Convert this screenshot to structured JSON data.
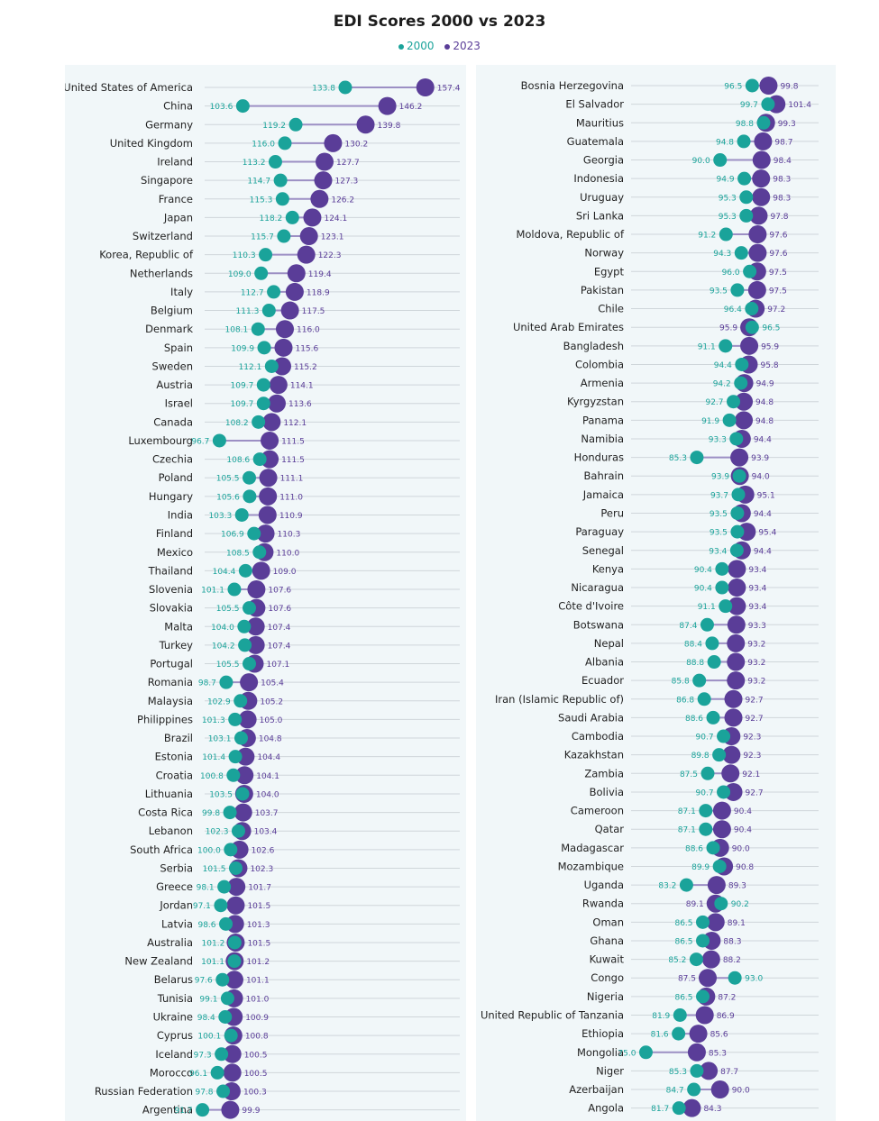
{
  "chart_data": {
    "type": "dumbbell",
    "title": "EDI Scores 2000 vs 2023",
    "legend": [
      {
        "label": "2000",
        "color": "#1aa39a"
      },
      {
        "label": "2023",
        "color": "#5a3d98"
      }
    ],
    "series_names": [
      "2000",
      "2023"
    ],
    "panels": [
      {
        "xlim": [
          95,
          158
        ],
        "rows": [
          {
            "country": "United States of America",
            "v2000": 133.8,
            "v2023": 157.4
          },
          {
            "country": "China",
            "v2000": 103.6,
            "v2023": 146.2
          },
          {
            "country": "Germany",
            "v2000": 119.2,
            "v2023": 139.8
          },
          {
            "country": "United Kingdom",
            "v2000": 116.0,
            "v2023": 130.2
          },
          {
            "country": "Ireland",
            "v2000": 113.2,
            "v2023": 127.7
          },
          {
            "country": "Singapore",
            "v2000": 114.7,
            "v2023": 127.3
          },
          {
            "country": "France",
            "v2000": 115.3,
            "v2023": 126.2
          },
          {
            "country": "Japan",
            "v2000": 118.2,
            "v2023": 124.1
          },
          {
            "country": "Switzerland",
            "v2000": 115.7,
            "v2023": 123.1
          },
          {
            "country": "Korea, Republic of",
            "v2000": 110.3,
            "v2023": 122.3
          },
          {
            "country": "Netherlands",
            "v2000": 109.0,
            "v2023": 119.4
          },
          {
            "country": "Italy",
            "v2000": 112.7,
            "v2023": 118.9
          },
          {
            "country": "Belgium",
            "v2000": 111.3,
            "v2023": 117.5
          },
          {
            "country": "Denmark",
            "v2000": 108.1,
            "v2023": 116.0
          },
          {
            "country": "Spain",
            "v2000": 109.9,
            "v2023": 115.6
          },
          {
            "country": "Sweden",
            "v2000": 112.1,
            "v2023": 115.2
          },
          {
            "country": "Austria",
            "v2000": 109.7,
            "v2023": 114.1
          },
          {
            "country": "Israel",
            "v2000": 109.7,
            "v2023": 113.6
          },
          {
            "country": "Canada",
            "v2000": 108.2,
            "v2023": 112.1
          },
          {
            "country": "Luxembourg",
            "v2000": 96.7,
            "v2023": 111.5
          },
          {
            "country": "Czechia",
            "v2000": 108.6,
            "v2023": 111.5
          },
          {
            "country": "Poland",
            "v2000": 105.5,
            "v2023": 111.1
          },
          {
            "country": "Hungary",
            "v2000": 105.6,
            "v2023": 111.0
          },
          {
            "country": "India",
            "v2000": 103.3,
            "v2023": 110.9
          },
          {
            "country": "Finland",
            "v2000": 106.9,
            "v2023": 110.3
          },
          {
            "country": "Mexico",
            "v2000": 108.5,
            "v2023": 110.0
          },
          {
            "country": "Thailand",
            "v2000": 104.4,
            "v2023": 109.0
          },
          {
            "country": "Slovenia",
            "v2000": 101.1,
            "v2023": 107.6
          },
          {
            "country": "Slovakia",
            "v2000": 105.5,
            "v2023": 107.6
          },
          {
            "country": "Malta",
            "v2000": 104.0,
            "v2023": 107.4
          },
          {
            "country": "Turkey",
            "v2000": 104.2,
            "v2023": 107.4
          },
          {
            "country": "Portugal",
            "v2000": 105.5,
            "v2023": 107.1
          },
          {
            "country": "Romania",
            "v2000": 98.7,
            "v2023": 105.4
          },
          {
            "country": "Malaysia",
            "v2000": 102.9,
            "v2023": 105.2
          },
          {
            "country": "Philippines",
            "v2000": 101.3,
            "v2023": 105.0
          },
          {
            "country": "Brazil",
            "v2000": 103.1,
            "v2023": 104.8
          },
          {
            "country": "Estonia",
            "v2000": 101.4,
            "v2023": 104.4
          },
          {
            "country": "Croatia",
            "v2000": 100.8,
            "v2023": 104.1
          },
          {
            "country": "Lithuania",
            "v2000": 103.5,
            "v2023": 104.0
          },
          {
            "country": "Costa Rica",
            "v2000": 99.8,
            "v2023": 103.7
          },
          {
            "country": "Lebanon",
            "v2000": 102.3,
            "v2023": 103.4
          },
          {
            "country": "South Africa",
            "v2000": 100.0,
            "v2023": 102.6
          },
          {
            "country": "Serbia",
            "v2000": 101.5,
            "v2023": 102.3
          },
          {
            "country": "Greece",
            "v2000": 98.1,
            "v2023": 101.7
          },
          {
            "country": "Jordan",
            "v2000": 97.1,
            "v2023": 101.5
          },
          {
            "country": "Latvia",
            "v2000": 98.6,
            "v2023": 101.3
          },
          {
            "country": "Australia",
            "v2000": 101.2,
            "v2023": 101.5
          },
          {
            "country": "New Zealand",
            "v2000": 101.1,
            "v2023": 101.2
          },
          {
            "country": "Belarus",
            "v2000": 97.6,
            "v2023": 101.1
          },
          {
            "country": "Tunisia",
            "v2000": 99.1,
            "v2023": 101.0
          },
          {
            "country": "Ukraine",
            "v2000": 98.4,
            "v2023": 100.9
          },
          {
            "country": "Cyprus",
            "v2000": 100.1,
            "v2023": 100.8
          },
          {
            "country": "Iceland",
            "v2000": 97.3,
            "v2023": 100.5
          },
          {
            "country": "Morocco",
            "v2000": 96.1,
            "v2023": 100.5
          },
          {
            "country": "Russian Federation",
            "v2000": 97.8,
            "v2023": 100.3
          },
          {
            "country": "Argentina",
            "v2000": 91.7,
            "v2023": 99.9
          }
        ]
      },
      {
        "xlim": [
          72,
          103
        ],
        "rows": [
          {
            "country": "Bosnia Herzegovina",
            "v2000": 96.5,
            "v2023": 99.8
          },
          {
            "country": "El Salvador",
            "v2000": 99.7,
            "v2023": 101.4
          },
          {
            "country": "Mauritius",
            "v2000": 98.8,
            "v2023": 99.3
          },
          {
            "country": "Guatemala",
            "v2000": 94.8,
            "v2023": 98.7
          },
          {
            "country": "Georgia",
            "v2000": 90.0,
            "v2023": 98.4
          },
          {
            "country": "Indonesia",
            "v2000": 94.9,
            "v2023": 98.3
          },
          {
            "country": "Uruguay",
            "v2000": 95.3,
            "v2023": 98.3
          },
          {
            "country": "Sri Lanka",
            "v2000": 95.3,
            "v2023": 97.8
          },
          {
            "country": "Moldova, Republic of",
            "v2000": 91.2,
            "v2023": 97.6
          },
          {
            "country": "Norway",
            "v2000": 94.3,
            "v2023": 97.6
          },
          {
            "country": "Egypt",
            "v2000": 96.0,
            "v2023": 97.5
          },
          {
            "country": "Pakistan",
            "v2000": 93.5,
            "v2023": 97.5
          },
          {
            "country": "Chile",
            "v2000": 96.4,
            "v2023": 97.2
          },
          {
            "country": "United Arab Emirates",
            "v2000": 96.5,
            "v2023": 95.9
          },
          {
            "country": "Bangladesh",
            "v2000": 91.1,
            "v2023": 95.9
          },
          {
            "country": "Colombia",
            "v2000": 94.4,
            "v2023": 95.8
          },
          {
            "country": "Armenia",
            "v2000": 94.2,
            "v2023": 94.9
          },
          {
            "country": "Kyrgyzstan",
            "v2000": 92.7,
            "v2023": 94.8
          },
          {
            "country": "Panama",
            "v2000": 91.9,
            "v2023": 94.8
          },
          {
            "country": "Namibia",
            "v2000": 93.3,
            "v2023": 94.4
          },
          {
            "country": "Honduras",
            "v2000": 85.3,
            "v2023": 93.9
          },
          {
            "country": "Bahrain",
            "v2000": 93.9,
            "v2023": 94.0
          },
          {
            "country": "Jamaica",
            "v2000": 93.7,
            "v2023": 95.1
          },
          {
            "country": "Peru",
            "v2000": 93.5,
            "v2023": 94.4
          },
          {
            "country": "Paraguay",
            "v2000": 93.5,
            "v2023": 95.4
          },
          {
            "country": "Senegal",
            "v2000": 93.4,
            "v2023": 94.4
          },
          {
            "country": "Kenya",
            "v2000": 90.4,
            "v2023": 93.4
          },
          {
            "country": "Nicaragua",
            "v2000": 90.4,
            "v2023": 93.4
          },
          {
            "country": "Côte d'Ivoire",
            "v2000": 91.1,
            "v2023": 93.4
          },
          {
            "country": "Botswana",
            "v2000": 87.4,
            "v2023": 93.3
          },
          {
            "country": "Nepal",
            "v2000": 88.4,
            "v2023": 93.2
          },
          {
            "country": "Albania",
            "v2000": 88.8,
            "v2023": 93.2
          },
          {
            "country": "Ecuador",
            "v2000": 85.8,
            "v2023": 93.2
          },
          {
            "country": "Iran (Islamic Republic of)",
            "v2000": 86.8,
            "v2023": 92.7
          },
          {
            "country": "Saudi Arabia",
            "v2000": 88.6,
            "v2023": 92.7
          },
          {
            "country": "Cambodia",
            "v2000": 90.7,
            "v2023": 92.3
          },
          {
            "country": "Kazakhstan",
            "v2000": 89.8,
            "v2023": 92.3
          },
          {
            "country": "Zambia",
            "v2000": 87.5,
            "v2023": 92.1
          },
          {
            "country": "Bolivia",
            "v2000": 90.7,
            "v2023": 92.7
          },
          {
            "country": "Cameroon",
            "v2000": 87.1,
            "v2023": 90.4
          },
          {
            "country": "Qatar",
            "v2000": 87.1,
            "v2023": 90.4
          },
          {
            "country": "Madagascar",
            "v2000": 88.6,
            "v2023": 90.0
          },
          {
            "country": "Mozambique",
            "v2000": 89.9,
            "v2023": 90.8
          },
          {
            "country": "Uganda",
            "v2000": 83.2,
            "v2023": 89.3
          },
          {
            "country": "Rwanda",
            "v2000": 90.2,
            "v2023": 89.1
          },
          {
            "country": "Oman",
            "v2000": 86.5,
            "v2023": 89.1
          },
          {
            "country": "Ghana",
            "v2000": 86.5,
            "v2023": 88.3
          },
          {
            "country": "Kuwait",
            "v2000": 85.2,
            "v2023": 88.2
          },
          {
            "country": "Congo",
            "v2000": 93.0,
            "v2023": 87.5
          },
          {
            "country": "Nigeria",
            "v2000": 86.5,
            "v2023": 87.2
          },
          {
            "country": "United Republic of Tanzania",
            "v2000": 81.9,
            "v2023": 86.9
          },
          {
            "country": "Ethiopia",
            "v2000": 81.6,
            "v2023": 85.6
          },
          {
            "country": "Mongolia",
            "v2000": 75.0,
            "v2023": 85.3
          },
          {
            "country": "Niger",
            "v2000": 85.3,
            "v2023": 87.7
          },
          {
            "country": "Azerbaijan",
            "v2000": 84.7,
            "v2023": 90.0
          },
          {
            "country": "Angola",
            "v2000": 81.7,
            "v2023": 84.3
          }
        ]
      }
    ]
  }
}
